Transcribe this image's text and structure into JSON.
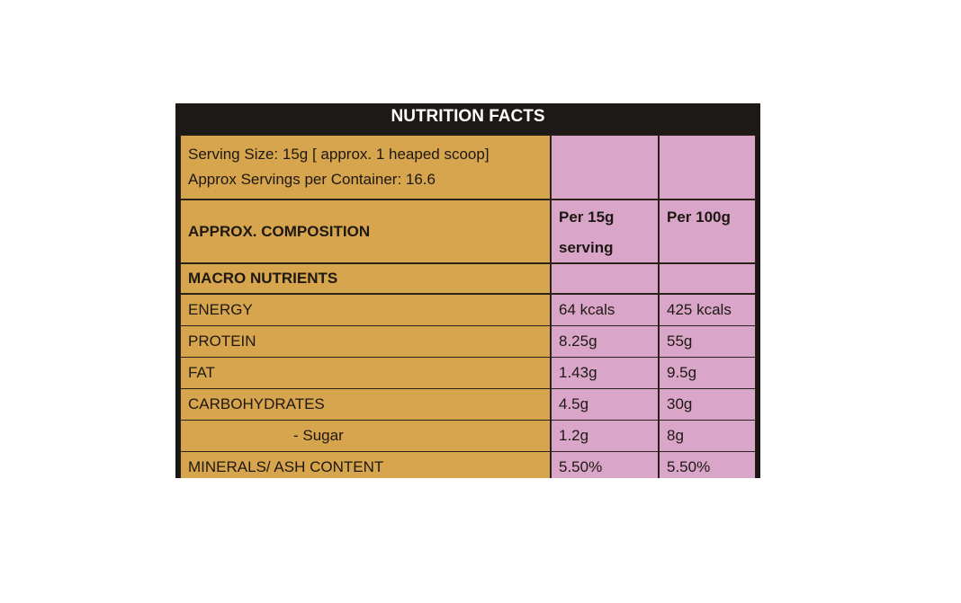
{
  "header": {
    "title": "NUTRITION FACTS"
  },
  "serving": {
    "size": "Serving Size: 15g [ approx. 1 heaped scoop]",
    "servings": "Approx Servings per Container: 16.6"
  },
  "table": {
    "header": [
      "APPROX. COMPOSITION",
      "Per 15g serving",
      "Per 100g"
    ],
    "section": "MACRO NUTRIENTS",
    "rows": [
      [
        "ENERGY",
        "64 kcals",
        "425 kcals"
      ],
      [
        "PROTEIN",
        "8.25g",
        "55g"
      ],
      [
        "FAT",
        "1.43g",
        "9.5g"
      ],
      [
        "CARBOHYDRATES",
        "4.5g",
        "30g"
      ],
      [
        "- Sugar",
        "1.2g",
        "8g"
      ],
      [
        "MINERALS/ ASH CONTENT",
        "5.50%",
        "5.50%"
      ]
    ]
  }
}
